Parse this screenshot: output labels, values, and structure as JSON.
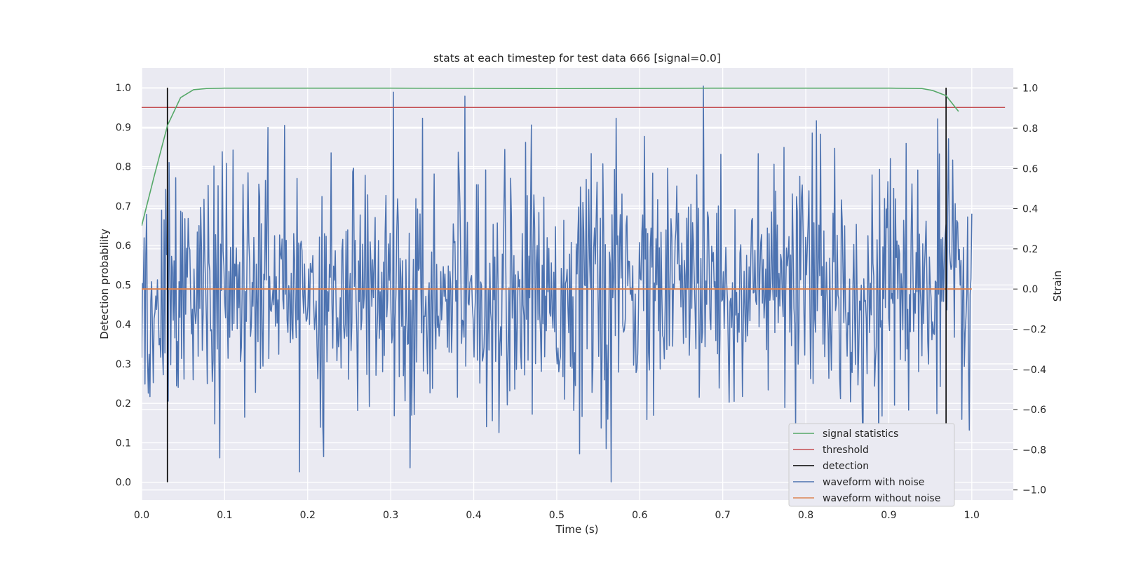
{
  "chart_data": {
    "type": "line",
    "title": "stats at each timestep for test data 666 [signal=0.0]",
    "xlabel": "Time (s)",
    "ylabel": "Detection probability",
    "ylabel_right": "Strain",
    "xlim": [
      0.0,
      1.05
    ],
    "ylim": [
      -0.045,
      1.05
    ],
    "ylim_right": [
      -1.05,
      1.1
    ],
    "x_ticks": [
      "0.0",
      "0.1",
      "0.2",
      "0.3",
      "0.4",
      "0.5",
      "0.6",
      "0.7",
      "0.8",
      "0.9",
      "1.0"
    ],
    "y_ticks": [
      "0.0",
      "0.1",
      "0.2",
      "0.3",
      "0.4",
      "0.5",
      "0.6",
      "0.7",
      "0.8",
      "0.9",
      "1.0"
    ],
    "y_ticks_right": [
      "−1.0",
      "−0.8",
      "−0.6",
      "−0.4",
      "−0.2",
      "0.0",
      "0.2",
      "0.4",
      "0.6",
      "0.8",
      "1.0"
    ],
    "grid": true,
    "legend_position": "lower-right",
    "colors": {
      "signal_statistics": "#55a868",
      "threshold": "#c44e52",
      "detection": "#000000",
      "waveform_with_noise": "#4c72b0",
      "waveform_without_noise": "#dd8452",
      "plot_background": "#eaeaf2",
      "grid": "#ffffff"
    },
    "legend": [
      "signal statistics",
      "threshold",
      "detection",
      "waveform with noise",
      "waveform without noise"
    ],
    "signal_statistics": {
      "x": [
        0.0,
        0.0156,
        0.0312,
        0.0469,
        0.0625,
        0.0781,
        0.1,
        0.3,
        0.5,
        0.7,
        0.9,
        0.94,
        0.953,
        0.969,
        0.984
      ],
      "y": [
        0.65,
        0.78,
        0.905,
        0.975,
        0.995,
        0.998,
        0.999,
        0.999,
        0.998,
        0.999,
        0.999,
        0.998,
        0.993,
        0.98,
        0.94
      ]
    },
    "threshold": {
      "y": 0.95,
      "x_range": [
        0.0,
        1.04
      ]
    },
    "detection": {
      "x": [
        0.031,
        0.969
      ],
      "y_range": [
        0.0,
        1.0
      ]
    },
    "waveform_without_noise": {
      "y": 0.0,
      "x_range": [
        0.0,
        1.0
      ]
    },
    "waveform_with_noise": {
      "axis": "right",
      "x_range": [
        0.0,
        1.0
      ],
      "n_points": 1000,
      "std": 0.3,
      "peaks": [
        {
          "x": 0.303,
          "y": 0.98
        },
        {
          "x": 0.389,
          "y": 0.96
        },
        {
          "x": 0.677,
          "y": 1.01
        },
        {
          "x": 0.566,
          "y": -0.96
        },
        {
          "x": 0.323,
          "y": -0.89
        },
        {
          "x": 0.19,
          "y": -0.91
        },
        {
          "x": 0.094,
          "y": -0.84
        },
        {
          "x": 0.528,
          "y": -0.82
        }
      ]
    }
  }
}
